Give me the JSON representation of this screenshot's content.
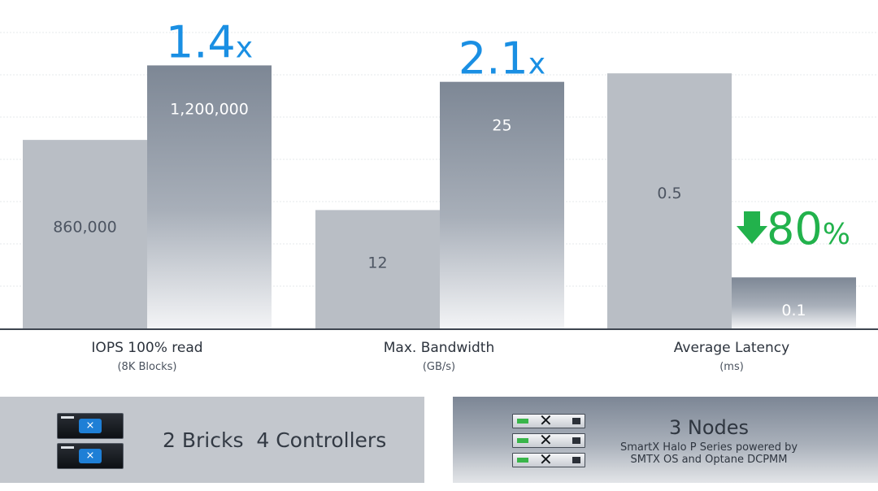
{
  "chart_data": {
    "type": "bar",
    "categories": [
      "IOPS 100% read",
      "Max. Bandwidth",
      "Average Latency"
    ],
    "category_subtitles": [
      "(8K Blocks)",
      "(GB/s)",
      "(ms)"
    ],
    "series": [
      {
        "values": [
          860000,
          12,
          0.5
        ],
        "labels": [
          "860,000",
          "12",
          "0.5"
        ],
        "color": "#b9bec5"
      },
      {
        "values": [
          1200000,
          25,
          0.1
        ],
        "labels": [
          "1,200,000",
          "25",
          "0.1"
        ],
        "color": "#7d8795"
      }
    ],
    "annotations": [
      {
        "category": 0,
        "number": "1.4",
        "suffix": "x",
        "color": "#1a8fe3"
      },
      {
        "category": 1,
        "number": "2.1",
        "suffix": "x",
        "color": "#1a8fe3"
      },
      {
        "category": 2,
        "number": "80",
        "suffix": "%",
        "color": "#22b24c",
        "arrow": "down"
      }
    ],
    "grid": true
  },
  "panels": {
    "left": {
      "text": "2 Bricks  4 Controllers"
    },
    "right": {
      "title": "3 Nodes",
      "subtitle_line1": "SmartX Halo P Series powered by",
      "subtitle_line2": "SMTX OS and Optane DCPMM"
    }
  },
  "icons": {
    "brick": "storage-brick-icon",
    "node": "server-node-icon"
  }
}
